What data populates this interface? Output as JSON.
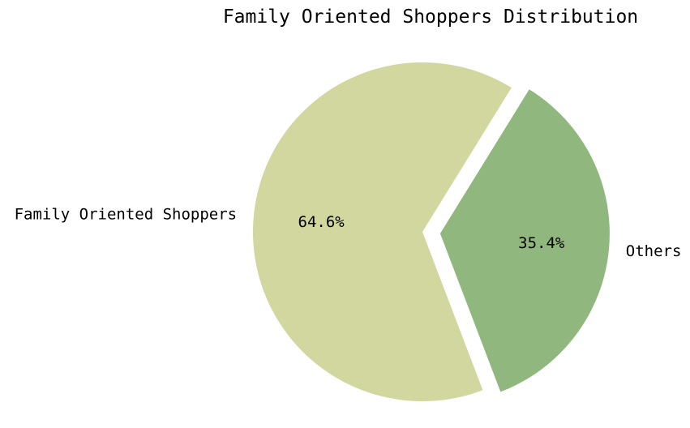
{
  "chart_data": {
    "type": "pie",
    "title": "Family Oriented Shoppers Distribution",
    "slices": [
      {
        "label": "Family Oriented Shoppers",
        "value": 64.6,
        "pct_label": "64.6%",
        "color": "#d2d79f",
        "exploded": false
      },
      {
        "label": "Others",
        "value": 35.4,
        "pct_label": "35.4%",
        "color": "#90b77d",
        "exploded": true
      }
    ]
  }
}
